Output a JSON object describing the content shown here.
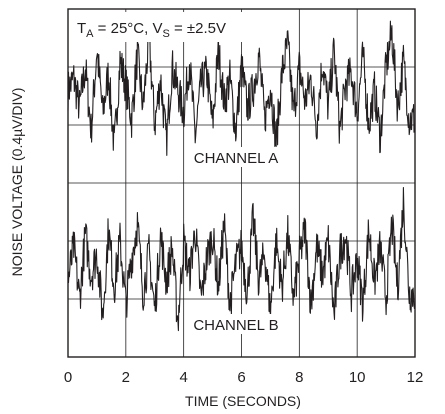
{
  "chart_data": {
    "type": "line",
    "title": "",
    "annotation": {
      "ta": "T",
      "ta_sub": "A",
      "ta_val": " = 25°C, V",
      "vs_sub": "S",
      "vs_val": " = ±2.5V"
    },
    "xlabel": "TIME (SECONDS)",
    "ylabel": "NOISE VOLTAGE (0.4µV/DIV)",
    "xlim": [
      0,
      12
    ],
    "x_ticks": [
      "0",
      "2",
      "4",
      "6",
      "8",
      "10",
      "12"
    ],
    "y_divisions": 6,
    "grid": true,
    "series": [
      {
        "name": "CHANNEL A",
        "center_div": 4.5,
        "x_step": 0.2,
        "values": [
          0.1,
          0.3,
          -0.2,
          0.5,
          -0.6,
          0.8,
          -0.3,
          0.4,
          -0.9,
          0.6,
          0.2,
          -0.4,
          0.7,
          -0.2,
          1.0,
          -0.5,
          0.3,
          -0.8,
          0.5,
          0.1,
          -0.3,
          0.6,
          -0.7,
          0.2,
          0.4,
          -0.5,
          0.8,
          -0.1,
          0.3,
          -0.6,
          0.5,
          -0.2,
          0.1,
          0.7,
          -0.4,
          0.2,
          -0.8,
          0.4,
          0.9,
          -0.3,
          0.5,
          -0.1,
          0.3,
          -0.5,
          0.6,
          -0.2,
          0.8,
          -0.6,
          0.2,
          0.4,
          -0.3,
          0.7,
          -0.5,
          0.1,
          -0.7,
          0.5,
          1.1,
          -0.2,
          0.6,
          -0.4
        ]
      },
      {
        "name": "CHANNEL B",
        "center_div": 1.5,
        "x_step": 0.2,
        "values": [
          -0.2,
          0.4,
          -0.5,
          0.6,
          -0.1,
          0.3,
          -0.8,
          0.7,
          -0.3,
          0.5,
          -0.6,
          0.2,
          0.8,
          -0.4,
          0.3,
          -0.7,
          0.6,
          -0.2,
          0.4,
          -0.9,
          0.5,
          -0.1,
          0.7,
          -0.5,
          0.2,
          0.6,
          -0.3,
          0.8,
          -0.6,
          0.1,
          0.4,
          -0.4,
          0.9,
          -0.2,
          0.3,
          -0.7,
          0.5,
          -0.3,
          0.6,
          -0.5,
          0.2,
          0.7,
          -0.6,
          0.4,
          -0.1,
          0.5,
          -0.8,
          0.3,
          0.6,
          -0.4,
          0.2,
          -0.6,
          0.7,
          -0.2,
          0.4,
          -0.5,
          0.8,
          -0.3,
          1.2,
          -0.4
        ]
      }
    ]
  }
}
